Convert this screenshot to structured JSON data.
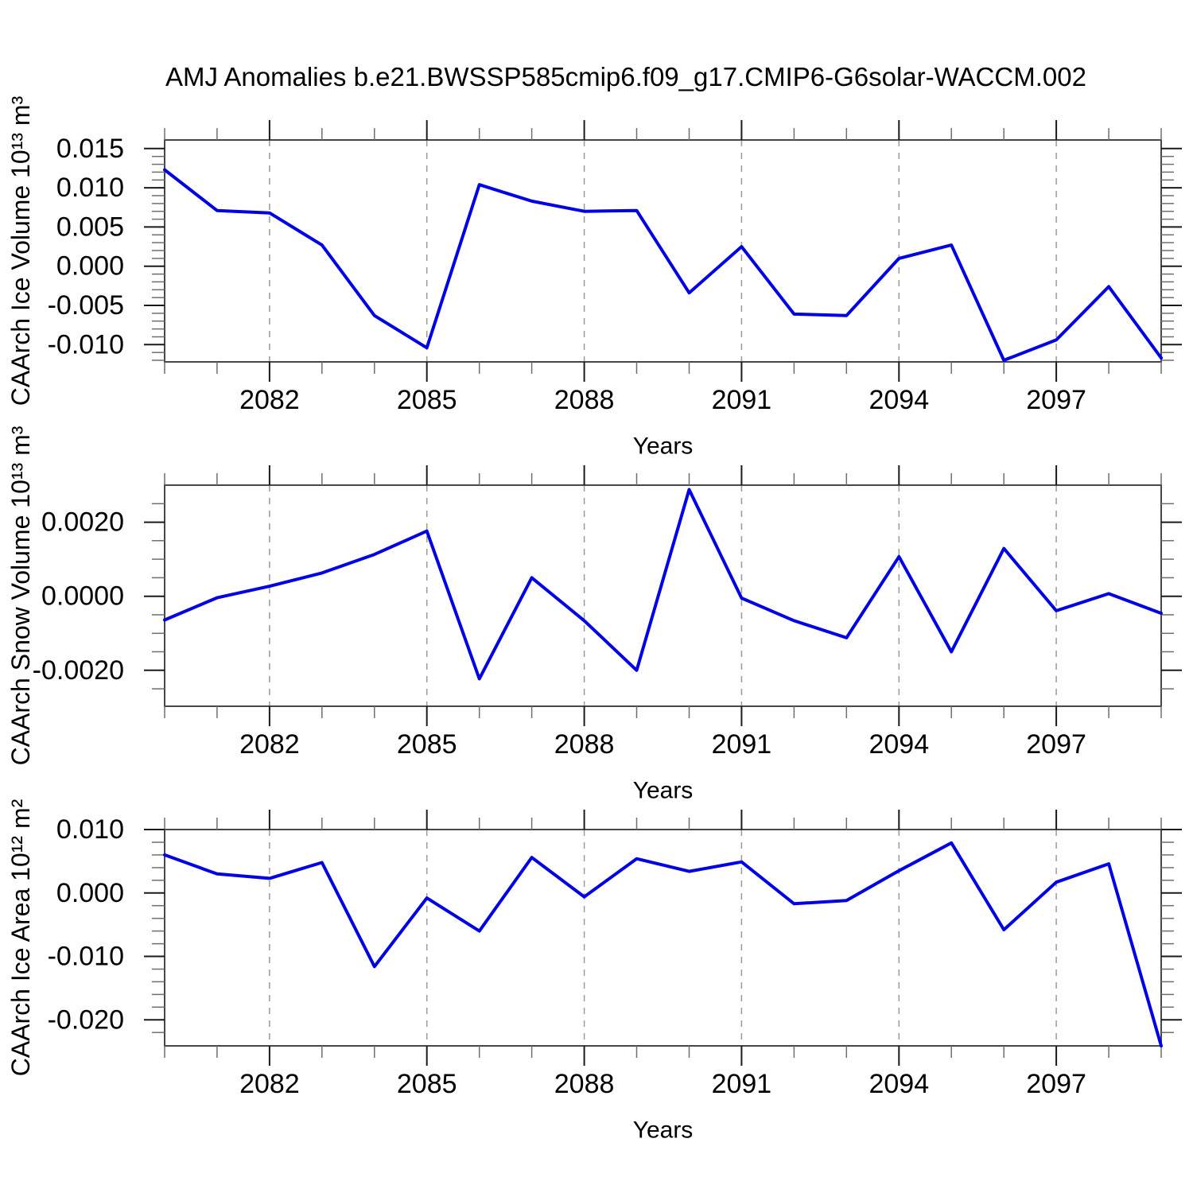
{
  "title": "AMJ Anomalies b.e21.BWSSP585cmip6.f09_g17.CMIP6-G6solar-WACCM.002",
  "line_color": "#0000e6",
  "chart_data": [
    {
      "type": "line",
      "ylabel": "CAArch Ice Volume 10¹³ m³",
      "xlabel": "Years",
      "x": [
        2080,
        2081,
        2082,
        2083,
        2084,
        2085,
        2086,
        2087,
        2088,
        2089,
        2090,
        2091,
        2092,
        2093,
        2094,
        2095,
        2096,
        2097,
        2098,
        2099
      ],
      "values": [
        0.0123,
        0.0071,
        0.0068,
        0.0027,
        -0.0063,
        -0.0104,
        0.0104,
        0.0083,
        0.007,
        0.0071,
        -0.0034,
        0.0025,
        -0.0061,
        -0.0063,
        0.001,
        0.0027,
        -0.012,
        -0.0094,
        -0.0026,
        -0.0117
      ],
      "xlim": [
        2080,
        2099
      ],
      "ylim": [
        -0.0122,
        0.0161
      ],
      "yticks": [
        0.015,
        0.01,
        0.005,
        0.0,
        -0.005,
        -0.01
      ],
      "ytick_labels": [
        "0.015",
        "0.010",
        "0.005",
        "0.000",
        "-0.005",
        "-0.010"
      ],
      "ytick_minor_step": 0.001,
      "x_major_ticks": [
        2082,
        2085,
        2088,
        2091,
        2094,
        2097
      ],
      "xtick_labels": [
        "2082",
        "2085",
        "2088",
        "2091",
        "2094",
        "2097"
      ],
      "grid": "vertical-dashed",
      "legend": "none"
    },
    {
      "type": "line",
      "ylabel": "CAArch Snow Volume 10¹³ m³",
      "xlabel": "Years",
      "x": [
        2080,
        2081,
        2082,
        2083,
        2084,
        2085,
        2086,
        2087,
        2088,
        2089,
        2090,
        2091,
        2092,
        2093,
        2094,
        2095,
        2096,
        2097,
        2098,
        2099
      ],
      "values": [
        -0.00064,
        -4e-05,
        0.00027,
        0.00063,
        0.00113,
        0.00176,
        -0.00223,
        0.0005,
        -0.00066,
        -0.002,
        0.00288,
        -5e-05,
        -0.00066,
        -0.00112,
        0.00107,
        -0.0015,
        0.00129,
        -0.00039,
        7e-05,
        -0.00046
      ],
      "xlim": [
        2080,
        2099
      ],
      "ylim": [
        -0.00297,
        0.003
      ],
      "yticks": [
        0.002,
        0.0,
        -0.002
      ],
      "ytick_labels": [
        "0.0020",
        "0.0000",
        "-0.0020"
      ],
      "ytick_minor_step": 0.0005,
      "x_major_ticks": [
        2082,
        2085,
        2088,
        2091,
        2094,
        2097
      ],
      "xtick_labels": [
        "2082",
        "2085",
        "2088",
        "2091",
        "2094",
        "2097"
      ],
      "grid": "vertical-dashed",
      "legend": "none"
    },
    {
      "type": "line",
      "ylabel": "CAArch Ice Area 10¹² m²",
      "xlabel": "Years",
      "x": [
        2080,
        2081,
        2082,
        2083,
        2084,
        2085,
        2086,
        2087,
        2088,
        2089,
        2090,
        2091,
        2092,
        2093,
        2094,
        2095,
        2096,
        2097,
        2098,
        2099
      ],
      "values": [
        0.006,
        0.003,
        0.0023,
        0.0048,
        -0.0116,
        -0.0008,
        -0.006,
        0.0056,
        -0.0006,
        0.0054,
        0.0034,
        0.0049,
        -0.0017,
        -0.0012,
        0.0035,
        0.0079,
        -0.0058,
        0.0017,
        0.0046,
        -0.0241
      ],
      "xlim": [
        2080,
        2099
      ],
      "ylim": [
        -0.0241,
        0.01
      ],
      "yticks": [
        0.01,
        0.0,
        -0.01,
        -0.02
      ],
      "ytick_labels": [
        "0.010",
        "0.000",
        "-0.010",
        "-0.020"
      ],
      "ytick_minor_step": 0.002,
      "x_major_ticks": [
        2082,
        2085,
        2088,
        2091,
        2094,
        2097
      ],
      "xtick_labels": [
        "2082",
        "2085",
        "2088",
        "2091",
        "2094",
        "2097"
      ],
      "grid": "vertical-dashed",
      "legend": "none"
    }
  ]
}
